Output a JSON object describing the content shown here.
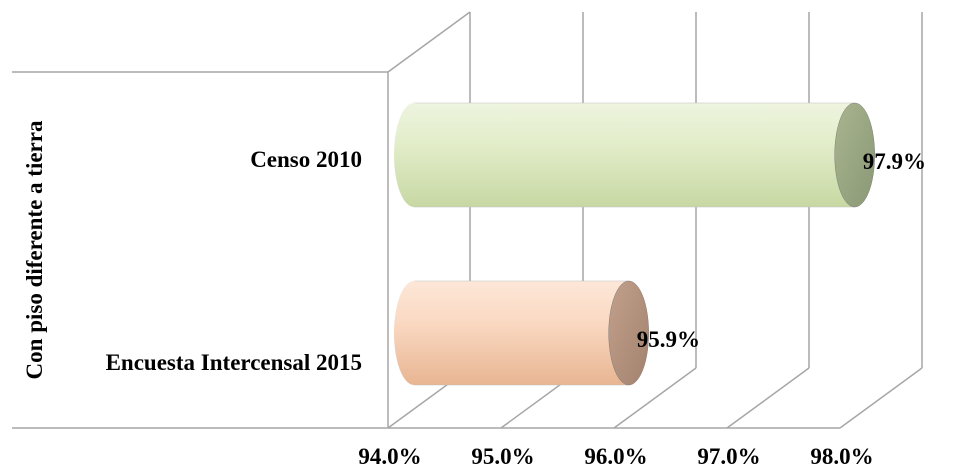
{
  "chart_data": {
    "type": "bar",
    "orientation": "horizontal",
    "three_d": true,
    "group_label": "Con piso diferente a tierra",
    "categories": [
      "Censo 2010",
      "Encuesta Intercensal 2015"
    ],
    "values": [
      97.9,
      95.9
    ],
    "data_labels": [
      "97.9%",
      "95.9%"
    ],
    "xlim": [
      94.0,
      98.0
    ],
    "x_ticks": [
      94.0,
      95.0,
      96.0,
      97.0,
      98.0
    ],
    "x_tick_labels": [
      "94.0%",
      "95.0%",
      "96.0%",
      "97.0%",
      "98.0%"
    ],
    "grid": true,
    "legend": "none",
    "colors": {
      "Censo 2010": "#d7e6b9",
      "Encuesta Intercensal 2015": "#f6cdb3"
    }
  }
}
